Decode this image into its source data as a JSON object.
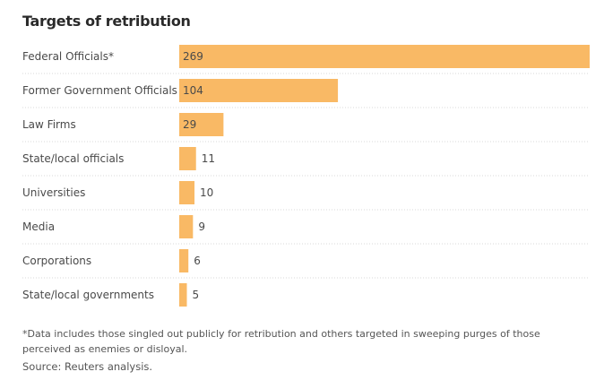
{
  "chart_data": {
    "type": "bar",
    "orientation": "horizontal",
    "title": "Targets of retribution",
    "categories": [
      "Federal Officials*",
      "Former Government Officials",
      "Law Firms",
      "State/local officials",
      "Universities",
      "Media",
      "Corporations",
      "State/local governments"
    ],
    "values": [
      269,
      104,
      29,
      11,
      10,
      9,
      6,
      5
    ],
    "xlabel": "",
    "ylabel": "",
    "xlim": [
      0,
      269
    ],
    "grid": false,
    "bar_color": "#f9b965",
    "footnote": "*Data includes those singled out publicly for retribution and others targeted in sweeping purges of those perceived as enemies or disloyal.",
    "source": "Source: Reuters analysis."
  }
}
